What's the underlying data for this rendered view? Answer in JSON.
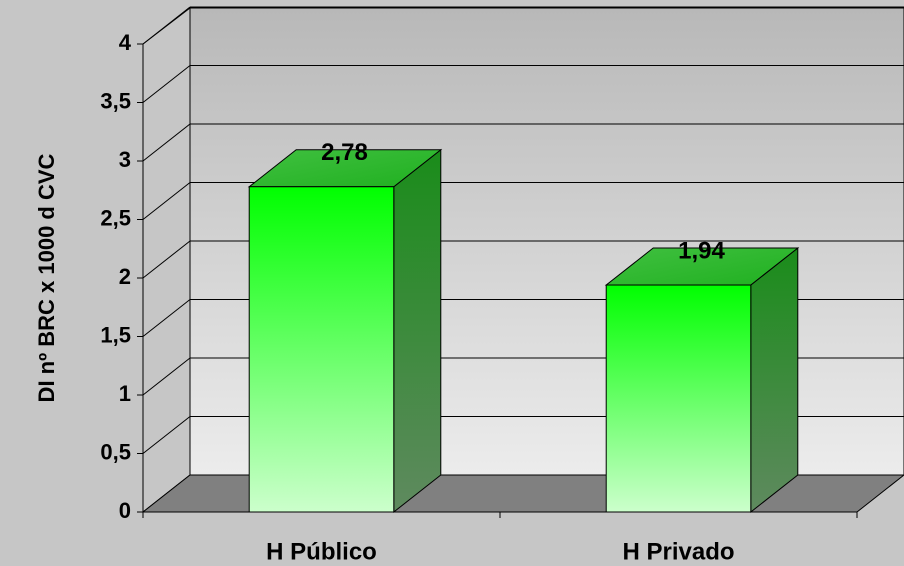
{
  "chart_data": {
    "type": "bar3d",
    "y_label": "DI nº BRC x 1000 d CVC",
    "categories": [
      "H Público",
      "H Privado"
    ],
    "values": [
      2.78,
      1.94
    ],
    "value_labels": [
      "2,78",
      "1,94"
    ],
    "color": "#00ff00",
    "ylim": [
      0,
      4
    ],
    "yticks": [
      0,
      {
        "value": 0.5,
        "label": "0,5"
      },
      1,
      {
        "value": 1.5,
        "label": "1,5"
      },
      2,
      {
        "value": 2.5,
        "label": "2,5"
      },
      3,
      {
        "value": 3.5,
        "label": "3,5"
      },
      4
    ],
    "grid": true
  }
}
